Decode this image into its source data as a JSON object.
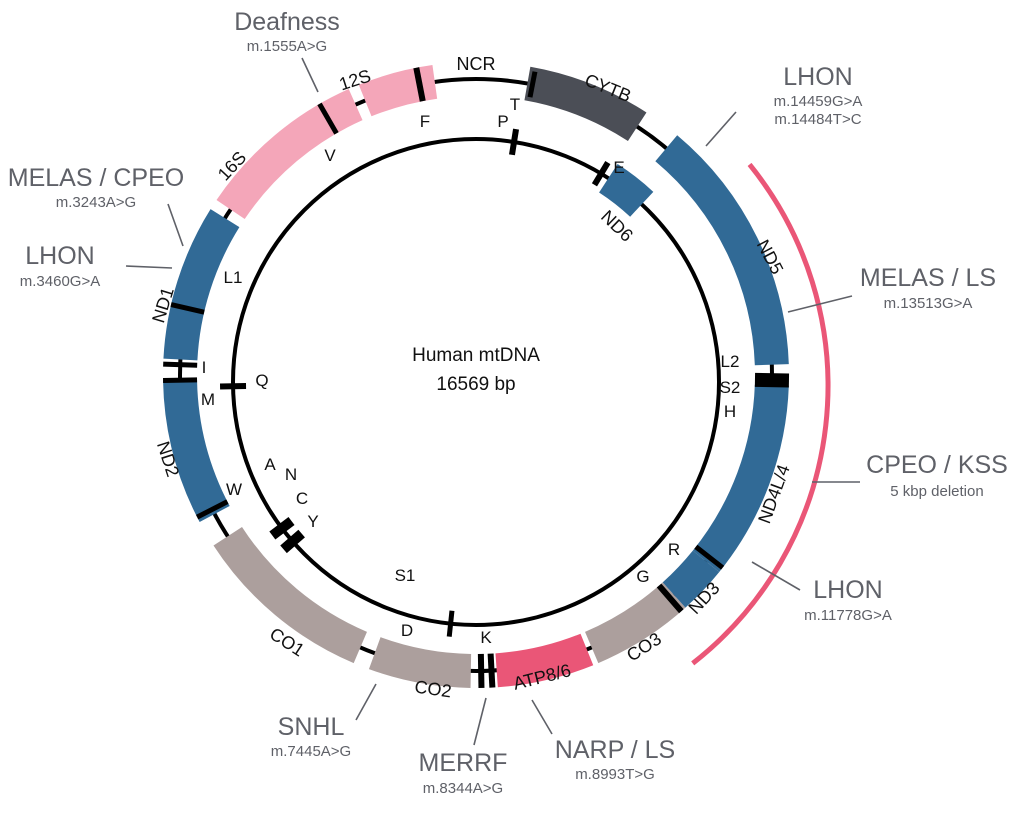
{
  "center": {
    "title": "Human mtDNA",
    "size": "16569 bp"
  },
  "colors": {
    "rrna": "#f4a6b9",
    "complex_i": "#316a96",
    "cytb": "#4b4e56",
    "complex_iv": "#ac9f9d",
    "atp": "#ea5677",
    "deletion_arc": "#ea5677",
    "strand": "#000000",
    "annotation": "#5f6168"
  },
  "outer_genes": [
    {
      "id": "12S",
      "label": "12S",
      "color": "rrna"
    },
    {
      "id": "16S",
      "label": "16S",
      "color": "rrna"
    },
    {
      "id": "ND1",
      "label": "ND1",
      "color": "complex_i"
    },
    {
      "id": "ND2",
      "label": "ND2",
      "color": "complex_i"
    },
    {
      "id": "CO1",
      "label": "CO1",
      "color": "complex_iv"
    },
    {
      "id": "CO2",
      "label": "CO2",
      "color": "complex_iv"
    },
    {
      "id": "ATP8/6",
      "label": "ATP8/6",
      "color": "atp"
    },
    {
      "id": "CO3",
      "label": "CO3",
      "color": "complex_iv"
    },
    {
      "id": "ND3",
      "label": "ND3",
      "color": "complex_i"
    },
    {
      "id": "ND4L/4",
      "label": "ND4L/4",
      "color": "complex_i"
    },
    {
      "id": "ND5",
      "label": "ND5",
      "color": "complex_i"
    },
    {
      "id": "CYTB",
      "label": "CYTB",
      "color": "cytb"
    }
  ],
  "inner_genes": [
    {
      "id": "ND6",
      "label": "ND6",
      "color": "complex_i"
    }
  ],
  "region_labels": {
    "ncr": "NCR"
  },
  "trna_labels": [
    "F",
    "V",
    "L1",
    "I",
    "M",
    "Q",
    "W",
    "A",
    "N",
    "C",
    "Y",
    "S1",
    "D",
    "K",
    "G",
    "R",
    "H",
    "S2",
    "L2",
    "E",
    "P",
    "T"
  ],
  "annotations": [
    {
      "id": "deafness",
      "disease": "Deafness",
      "mutation": "m.1555A>G"
    },
    {
      "id": "melas-cpeo",
      "disease": "MELAS / CPEO",
      "mutation": "m.3243A>G"
    },
    {
      "id": "lhon-3460",
      "disease": "LHON",
      "mutation": "m.3460G>A"
    },
    {
      "id": "lhon-14459",
      "disease": "LHON",
      "mutation": "m.14459G>A",
      "mutation2": "m.14484T>C"
    },
    {
      "id": "melas-ls",
      "disease": "MELAS / LS",
      "mutation": "m.13513G>A"
    },
    {
      "id": "cpeo-kss",
      "disease": "CPEO / KSS",
      "mutation": "5 kbp deletion"
    },
    {
      "id": "lhon-11778",
      "disease": "LHON",
      "mutation": "m.11778G>A"
    },
    {
      "id": "narp-ls",
      "disease": "NARP / LS",
      "mutation": "m.8993T>G"
    },
    {
      "id": "merrf",
      "disease": "MERRF",
      "mutation": "m.8344A>G"
    },
    {
      "id": "snhl",
      "disease": "SNHL",
      "mutation": "m.7445A>G"
    }
  ]
}
